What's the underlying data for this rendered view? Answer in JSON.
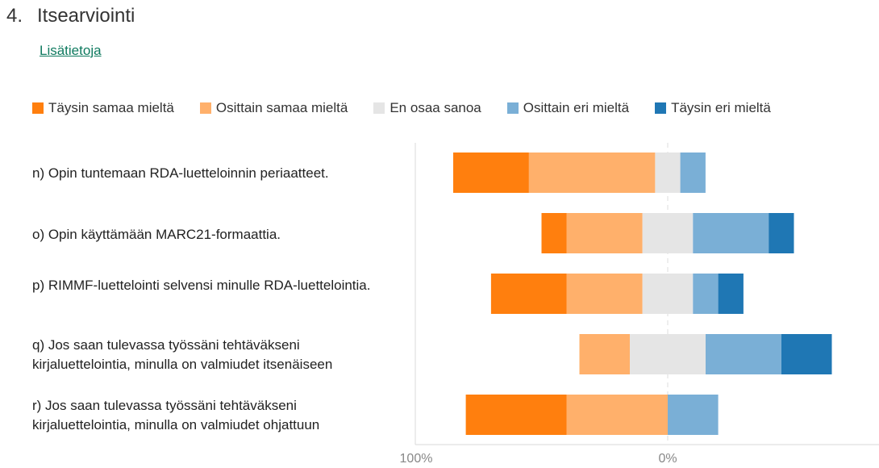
{
  "question": {
    "number": "4.",
    "title": "Itsearviointi",
    "more_info_link": "Lisätietoja"
  },
  "chart_data": {
    "type": "bar",
    "subtype": "diverging-stacked-horizontal",
    "legend_position": "top",
    "legend": [
      {
        "name": "Täysin samaa mieltä",
        "color": "#ff7f0e"
      },
      {
        "name": "Osittain samaa mieltä",
        "color": "#ffb06b"
      },
      {
        "name": "En osaa sanoa",
        "color": "#e5e5e5"
      },
      {
        "name": "Osittain eri mieltä",
        "color": "#7aafd6"
      },
      {
        "name": "Täysin eri mieltä",
        "color": "#1f77b4"
      }
    ],
    "categories": [
      "n) Opin tuntemaan RDA-luetteloinnin periaatteet.",
      "o) Opin käyttämään MARC21-formaattia.",
      "p) RIMMF-luettelointi selvensi minulle RDA-luettelointia.",
      "q) Jos saan tulevassa työssäni tehtäväkseni kirjaluettelointia, minulla on valmiudet itsenäiseen",
      "r) Jos saan tulevassa työssäni tehtäväkseni kirjaluettelointia, minulla on valmiudet ohjattuun"
    ],
    "series": [
      {
        "name": "Täysin samaa mieltä",
        "values": [
          30,
          10,
          30,
          0,
          40
        ]
      },
      {
        "name": "Osittain samaa mieltä",
        "values": [
          50,
          30,
          30,
          20,
          40
        ]
      },
      {
        "name": "En osaa sanoa",
        "values": [
          10,
          20,
          20,
          30,
          0
        ]
      },
      {
        "name": "Osittain eri mieltä",
        "values": [
          10,
          30,
          10,
          30,
          20
        ]
      },
      {
        "name": "Täysin eri mieltä",
        "values": [
          0,
          10,
          10,
          20,
          0
        ]
      }
    ],
    "unit": "%",
    "x_ticks": [
      "100%",
      "0%"
    ],
    "xlim": [
      -100,
      80
    ],
    "grid": false
  }
}
